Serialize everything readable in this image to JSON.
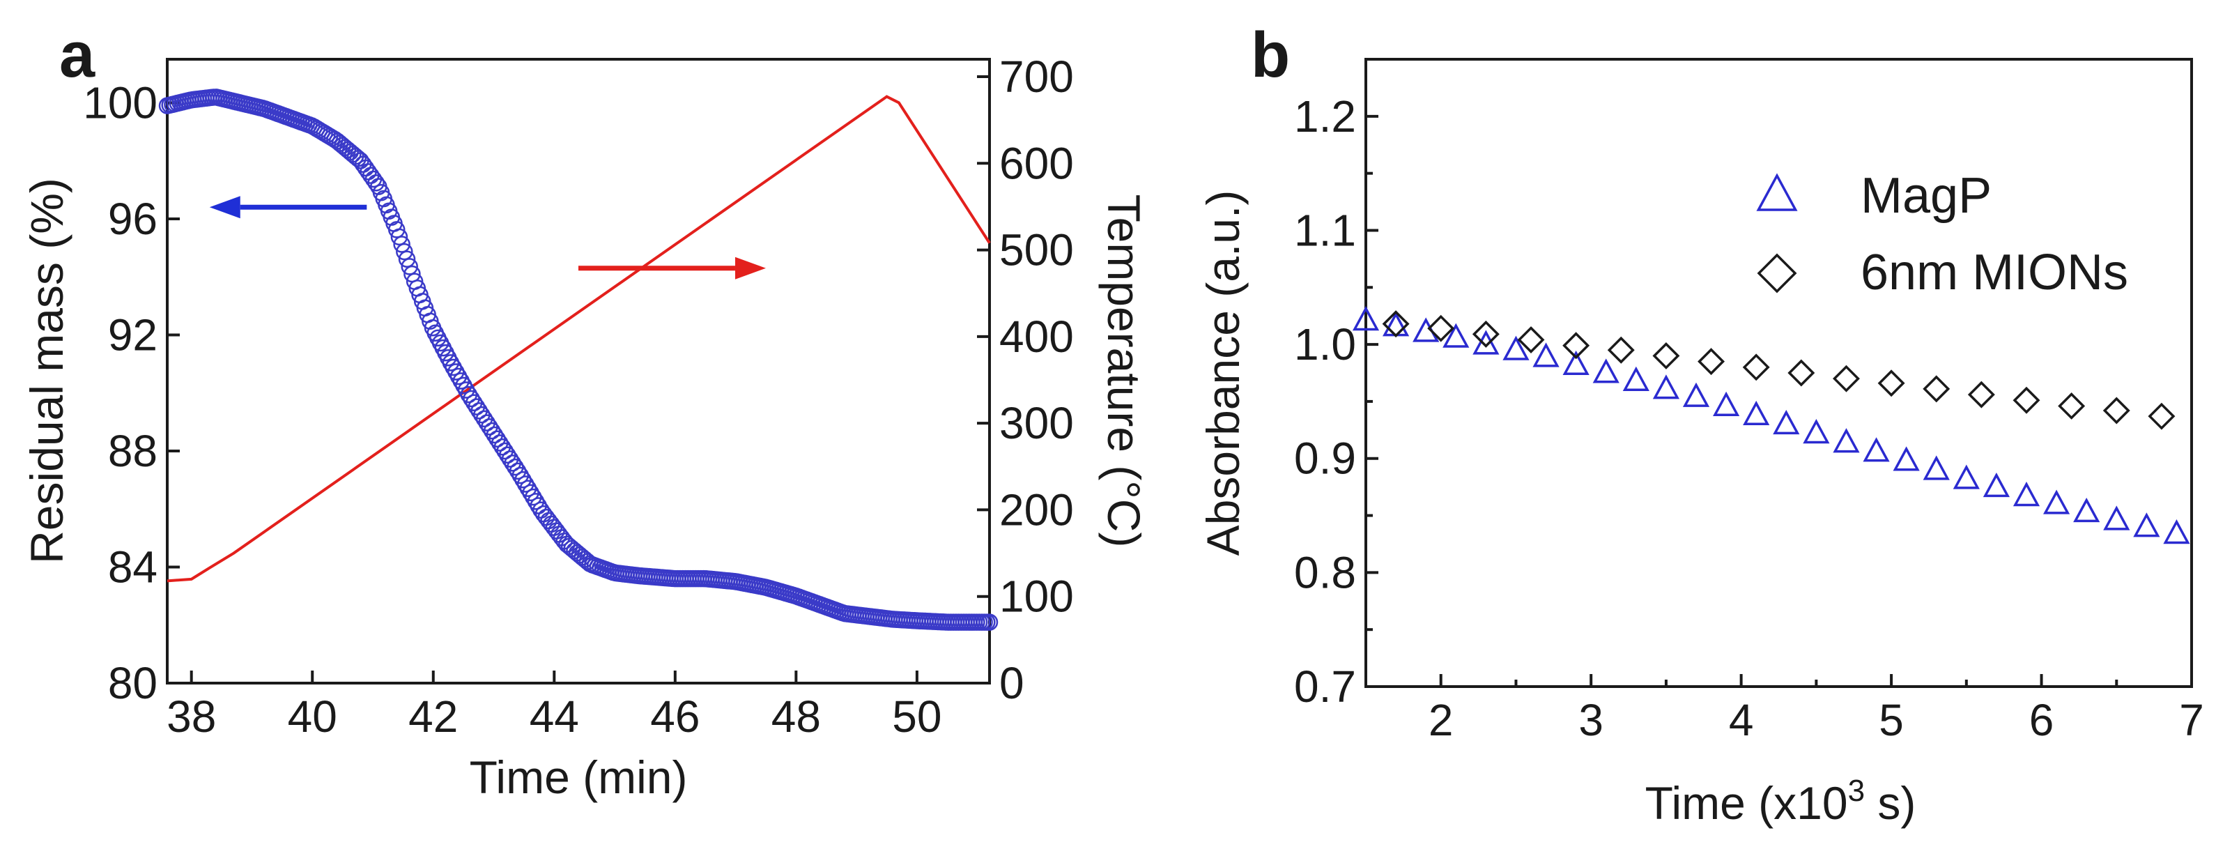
{
  "chart_data": [
    {
      "panel": "a",
      "type": "line",
      "xlabel": "Time (min)",
      "ylabel": "Residual mass (%)",
      "y2label": "Temperature (°C)",
      "xlim": [
        37.6,
        51.2
      ],
      "ylim": [
        80,
        101.5
      ],
      "y2lim": [
        0,
        700
      ],
      "xticks": [
        38,
        40,
        42,
        44,
        46,
        48,
        50
      ],
      "yticks": [
        80,
        84,
        88,
        92,
        96,
        100
      ],
      "y2ticks": [
        0,
        100,
        200,
        300,
        400,
        500,
        600,
        700
      ],
      "arrows": [
        {
          "color": "#1f2fd6",
          "direction": "left",
          "points_to": "Residual mass (%)",
          "x_from": 40.9,
          "x_to": 38.3,
          "y": 96.4
        },
        {
          "color": "#e3201c",
          "direction": "right",
          "points_to": "Temperature (°C)",
          "x_from": 44.4,
          "x_to": 47.5,
          "y": 94.3
        }
      ],
      "series": [
        {
          "name": "Residual mass",
          "axis": "left",
          "marker": "circle-open",
          "color": "#3a3ac8",
          "x": [
            37.6,
            38.0,
            38.4,
            38.8,
            39.2,
            39.6,
            40.0,
            40.4,
            40.8,
            41.1,
            41.4,
            41.7,
            42.0,
            42.3,
            42.6,
            43.0,
            43.4,
            43.8,
            44.2,
            44.6,
            45.0,
            45.4,
            46.0,
            46.5,
            47.0,
            47.5,
            48.0,
            48.4,
            48.8,
            49.2,
            49.6,
            50.0,
            50.5,
            51.0,
            51.2
          ],
          "y": [
            99.9,
            100.1,
            100.2,
            100.0,
            99.8,
            99.5,
            99.2,
            98.7,
            98.0,
            97.1,
            95.6,
            93.8,
            92.2,
            91.0,
            89.9,
            88.6,
            87.3,
            85.9,
            84.8,
            84.1,
            83.8,
            83.7,
            83.6,
            83.6,
            83.5,
            83.3,
            83.0,
            82.7,
            82.4,
            82.3,
            82.2,
            82.15,
            82.1,
            82.1,
            82.1
          ]
        },
        {
          "name": "Temperature",
          "axis": "right",
          "marker": "none",
          "color": "#e3201c",
          "x": [
            37.6,
            38.0,
            38.3,
            38.7,
            49.5,
            49.7,
            51.2
          ],
          "y": [
            118,
            120,
            133,
            150,
            677,
            670,
            508
          ]
        }
      ]
    },
    {
      "panel": "b",
      "type": "scatter",
      "xlabel": "Time (x10",
      "xlabel_sup": "3",
      "xlabel_end": " s)",
      "ylabel": "Absorbance (a.u.)",
      "xlim": [
        1.5,
        7
      ],
      "ylim": [
        0.7,
        1.25
      ],
      "xticks": [
        2,
        3,
        4,
        5,
        6,
        7
      ],
      "yticks": [
        0.7,
        0.8,
        0.9,
        1.0,
        1.1,
        1.2
      ],
      "ytick_labels": [
        "0.7",
        "0.8",
        "0.9",
        "1.0",
        "1.1",
        "1.2"
      ],
      "legend": "top-right",
      "series": [
        {
          "name": "MagP",
          "marker": "triangle-open",
          "color": "#2a2ad0",
          "x": [
            1.5,
            1.7,
            1.9,
            2.1,
            2.3,
            2.5,
            2.7,
            2.9,
            3.1,
            3.3,
            3.5,
            3.7,
            3.9,
            4.1,
            4.3,
            4.5,
            4.7,
            4.9,
            5.1,
            5.3,
            5.5,
            5.7,
            5.9,
            6.1,
            6.3,
            6.5,
            6.7,
            6.9
          ],
          "y": [
            1.021,
            1.016,
            1.011,
            1.006,
            1.0,
            0.995,
            0.989,
            0.982,
            0.975,
            0.968,
            0.961,
            0.954,
            0.946,
            0.938,
            0.93,
            0.922,
            0.914,
            0.906,
            0.898,
            0.89,
            0.882,
            0.875,
            0.867,
            0.86,
            0.853,
            0.846,
            0.84,
            0.834
          ]
        },
        {
          "name": "6nm MIONs",
          "marker": "diamond-open",
          "color": "#1a1a1a",
          "x": [
            1.7,
            2.0,
            2.3,
            2.6,
            2.9,
            3.2,
            3.5,
            3.8,
            4.1,
            4.4,
            4.7,
            5.0,
            5.3,
            5.6,
            5.9,
            6.2,
            6.5,
            6.8
          ],
          "y": [
            1.018,
            1.014,
            1.009,
            1.004,
            0.999,
            0.995,
            0.99,
            0.985,
            0.98,
            0.975,
            0.97,
            0.966,
            0.961,
            0.956,
            0.951,
            0.946,
            0.942,
            0.937
          ]
        }
      ]
    }
  ]
}
